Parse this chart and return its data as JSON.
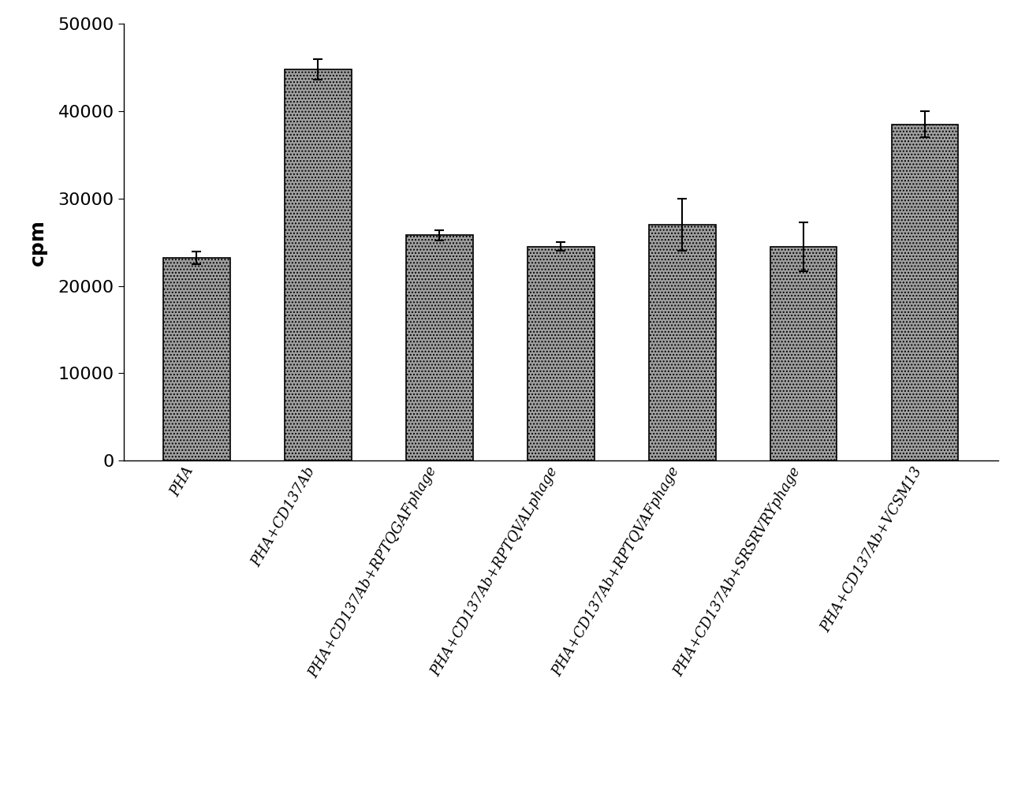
{
  "categories": [
    "PHA",
    "PHA+CD137Ab",
    "PHA+CD137Ab+RPTQGAFphage",
    "PHA+CD137Ab+RPTQVALphage",
    "PHA+CD137Ab+RPTQVAFphage",
    "PHA+CD137Ab+SRSRVRYphage",
    "PHA+CD137Ab+VCSM13"
  ],
  "values": [
    23200,
    44800,
    25800,
    24500,
    27000,
    24500,
    38500
  ],
  "errors": [
    700,
    1200,
    600,
    500,
    3000,
    2800,
    1500
  ],
  "bar_color": "#a0a0a0",
  "bar_hatch": "....",
  "ylabel": "cpm",
  "ylim": [
    0,
    50000
  ],
  "yticks": [
    0,
    10000,
    20000,
    30000,
    40000,
    50000
  ],
  "ylabel_fontsize": 18,
  "tick_fontsize": 16,
  "xlabel_fontsize": 13,
  "background_color": "#ffffff",
  "bar_width": 0.55,
  "bar_edge_color": "#000000",
  "label_rotation": 60,
  "figsize": [
    13.05,
    10.07
  ]
}
